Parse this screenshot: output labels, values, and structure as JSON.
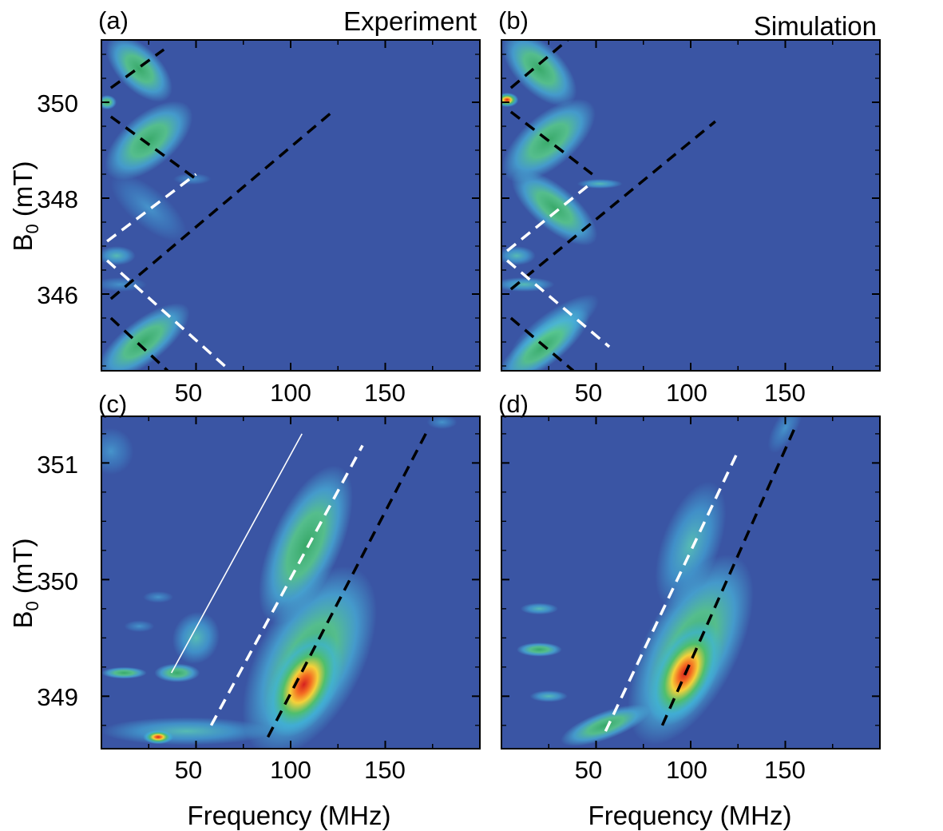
{
  "figure": {
    "xlabel": "Frequency (MHz)",
    "ylabel_main": "B",
    "ylabel_sub": "0",
    "ylabel_unit": " (mT)"
  },
  "chart_data": [
    {
      "type": "heatmap",
      "panel": "(a)",
      "title": "Experiment",
      "xlim": [
        0,
        200
      ],
      "ylim": [
        344.4,
        351.3
      ],
      "x_ticks": [
        50,
        100,
        150
      ],
      "x_tick_labels": [
        "50",
        "100",
        "150"
      ],
      "y_ticks": [
        346,
        348,
        350
      ],
      "y_tick_labels": [
        "346",
        "348",
        "350"
      ],
      "colors": {
        "background": "#3a55a4",
        "black_line": "#000000",
        "white_line": "#ffffff"
      },
      "blobs": [
        {
          "x": 20,
          "y": 350.7,
          "rx": 22,
          "ry": 0.45,
          "angle_deg": -45,
          "peak": 0.5
        },
        {
          "x": 25,
          "y": 349.2,
          "rx": 28,
          "ry": 0.55,
          "angle_deg": 40,
          "peak": 0.55
        },
        {
          "x": 3,
          "y": 350.0,
          "rx": 5,
          "ry": 0.15,
          "angle_deg": 0,
          "peak": 0.6
        },
        {
          "x": 25,
          "y": 347.8,
          "rx": 25,
          "ry": 0.4,
          "angle_deg": -40,
          "peak": 0.3
        },
        {
          "x": 48,
          "y": 348.4,
          "rx": 10,
          "ry": 0.12,
          "angle_deg": 0,
          "peak": 0.3
        },
        {
          "x": 8,
          "y": 346.8,
          "rx": 10,
          "ry": 0.2,
          "angle_deg": 0,
          "peak": 0.35
        },
        {
          "x": 10,
          "y": 346.2,
          "rx": 14,
          "ry": 0.15,
          "angle_deg": 0,
          "peak": 0.3
        },
        {
          "x": 22,
          "y": 345.0,
          "rx": 30,
          "ry": 0.45,
          "angle_deg": 38,
          "peak": 0.55
        }
      ],
      "lines": [
        {
          "color": "black",
          "x": [
            5,
            33
          ],
          "y": [
            350.3,
            351.1
          ]
        },
        {
          "color": "black",
          "x": [
            5,
            50
          ],
          "y": [
            349.7,
            348.4
          ]
        },
        {
          "color": "black",
          "x": [
            5,
            122
          ],
          "y": [
            345.9,
            349.8
          ]
        },
        {
          "color": "black",
          "x": [
            5,
            35
          ],
          "y": [
            345.5,
            344.4
          ]
        },
        {
          "color": "white",
          "x": [
            3,
            50
          ],
          "y": [
            347.1,
            348.5
          ]
        },
        {
          "color": "white",
          "x": [
            3,
            68
          ],
          "y": [
            346.7,
            344.4
          ]
        }
      ]
    },
    {
      "type": "heatmap",
      "panel": "(b)",
      "title": "Simulation",
      "xlim": [
        0,
        200
      ],
      "ylim": [
        344.4,
        351.3
      ],
      "x_ticks": [
        50,
        100,
        150
      ],
      "x_tick_labels": [
        "50",
        "100",
        "150"
      ],
      "y_ticks": [
        346,
        348,
        350
      ],
      "y_tick_labels": [
        "",
        "",
        ""
      ],
      "colors": {
        "background": "#3a55a4",
        "black_line": "#000000",
        "white_line": "#ffffff"
      },
      "blobs": [
        {
          "x": 20,
          "y": 350.7,
          "rx": 25,
          "ry": 0.5,
          "angle_deg": -45,
          "peak": 0.6
        },
        {
          "x": 25,
          "y": 349.2,
          "rx": 30,
          "ry": 0.55,
          "angle_deg": 40,
          "peak": 0.6
        },
        {
          "x": 3,
          "y": 350.05,
          "rx": 6,
          "ry": 0.15,
          "angle_deg": 0,
          "peak": 0.85
        },
        {
          "x": 28,
          "y": 347.8,
          "rx": 28,
          "ry": 0.45,
          "angle_deg": -40,
          "peak": 0.5
        },
        {
          "x": 52,
          "y": 348.3,
          "rx": 12,
          "ry": 0.1,
          "angle_deg": 0,
          "peak": 0.35
        },
        {
          "x": 8,
          "y": 346.8,
          "rx": 10,
          "ry": 0.2,
          "angle_deg": 0,
          "peak": 0.4
        },
        {
          "x": 12,
          "y": 346.2,
          "rx": 16,
          "ry": 0.15,
          "angle_deg": 0,
          "peak": 0.35
        },
        {
          "x": 28,
          "y": 345.3,
          "rx": 28,
          "ry": 0.35,
          "angle_deg": 35,
          "peak": 0.45
        },
        {
          "x": 22,
          "y": 344.9,
          "rx": 30,
          "ry": 0.4,
          "angle_deg": 38,
          "peak": 0.55
        }
      ],
      "lines": [
        {
          "color": "black",
          "x": [
            5,
            35
          ],
          "y": [
            350.3,
            351.3
          ]
        },
        {
          "color": "black",
          "x": [
            5,
            48
          ],
          "y": [
            349.8,
            348.5
          ]
        },
        {
          "color": "black",
          "x": [
            5,
            113
          ],
          "y": [
            346.1,
            349.6
          ]
        },
        {
          "color": "black",
          "x": [
            5,
            38
          ],
          "y": [
            345.5,
            344.4
          ]
        },
        {
          "color": "white",
          "x": [
            3,
            47
          ],
          "y": [
            346.9,
            348.3
          ]
        },
        {
          "color": "white",
          "x": [
            3,
            57
          ],
          "y": [
            346.7,
            344.9
          ]
        }
      ]
    },
    {
      "type": "heatmap",
      "panel": "(c)",
      "title": "",
      "xlim": [
        0,
        200
      ],
      "ylim": [
        348.55,
        351.4
      ],
      "x_ticks": [
        50,
        100,
        150
      ],
      "x_tick_labels": [
        "50",
        "100",
        "150"
      ],
      "y_ticks": [
        349,
        350,
        351
      ],
      "y_tick_labels": [
        "349",
        "350",
        "351"
      ],
      "colors": {
        "background": "#3a55a4",
        "black_line": "#000000",
        "white_line": "#ffffff"
      },
      "blobs": [
        {
          "x": 107,
          "y": 349.1,
          "rx": 30,
          "ry": 0.28,
          "angle_deg": 62,
          "peak": 1.0
        },
        {
          "x": 110,
          "y": 349.3,
          "rx": 55,
          "ry": 0.45,
          "angle_deg": 62,
          "peak": 0.55
        },
        {
          "x": 108,
          "y": 350.3,
          "rx": 45,
          "ry": 0.3,
          "angle_deg": 66,
          "peak": 0.5
        },
        {
          "x": 30,
          "y": 348.65,
          "rx": 8,
          "ry": 0.06,
          "angle_deg": 0,
          "peak": 0.85
        },
        {
          "x": 45,
          "y": 348.7,
          "rx": 45,
          "ry": 0.12,
          "angle_deg": 0,
          "peak": 0.45
        },
        {
          "x": 12,
          "y": 349.2,
          "rx": 12,
          "ry": 0.05,
          "angle_deg": 0,
          "peak": 0.55
        },
        {
          "x": 40,
          "y": 349.2,
          "rx": 12,
          "ry": 0.08,
          "angle_deg": 0,
          "peak": 0.5
        },
        {
          "x": 50,
          "y": 349.5,
          "rx": 14,
          "ry": 0.2,
          "angle_deg": 70,
          "peak": 0.35
        },
        {
          "x": 5,
          "y": 351.1,
          "rx": 12,
          "ry": 0.2,
          "angle_deg": 0,
          "peak": 0.3
        },
        {
          "x": 20,
          "y": 349.6,
          "rx": 8,
          "ry": 0.05,
          "angle_deg": 0,
          "peak": 0.25
        },
        {
          "x": 30,
          "y": 349.85,
          "rx": 8,
          "ry": 0.05,
          "angle_deg": 0,
          "peak": 0.25
        },
        {
          "x": 180,
          "y": 351.35,
          "rx": 8,
          "ry": 0.06,
          "angle_deg": 0,
          "peak": 0.25
        }
      ],
      "lines": [
        {
          "color": "black",
          "x": [
            88,
            173
          ],
          "y": [
            348.65,
            351.3
          ]
        },
        {
          "color": "white",
          "x": [
            58,
            138
          ],
          "y": [
            348.75,
            351.15
          ]
        },
        {
          "color": "white_solid",
          "x": [
            37,
            106
          ],
          "y": [
            349.2,
            351.25
          ]
        }
      ]
    },
    {
      "type": "heatmap",
      "panel": "(d)",
      "title": "",
      "xlim": [
        0,
        200
      ],
      "ylim": [
        348.55,
        351.4
      ],
      "x_ticks": [
        50,
        100,
        150
      ],
      "x_tick_labels": [
        "50",
        "100",
        "150"
      ],
      "y_ticks": [
        349,
        350,
        351
      ],
      "y_tick_labels": [
        "",
        "",
        ""
      ],
      "colors": {
        "background": "#3a55a4",
        "black_line": "#000000",
        "white_line": "#ffffff"
      },
      "blobs": [
        {
          "x": 97,
          "y": 349.2,
          "rx": 30,
          "ry": 0.26,
          "angle_deg": 63,
          "peak": 1.0
        },
        {
          "x": 100,
          "y": 349.4,
          "rx": 55,
          "ry": 0.4,
          "angle_deg": 63,
          "peak": 0.55
        },
        {
          "x": 100,
          "y": 350.3,
          "rx": 35,
          "ry": 0.25,
          "angle_deg": 70,
          "peak": 0.45
        },
        {
          "x": 150,
          "y": 351.3,
          "rx": 15,
          "ry": 0.1,
          "angle_deg": 60,
          "peak": 0.3
        },
        {
          "x": 55,
          "y": 348.75,
          "rx": 25,
          "ry": 0.12,
          "angle_deg": 20,
          "peak": 0.55
        },
        {
          "x": 20,
          "y": 349.4,
          "rx": 12,
          "ry": 0.06,
          "angle_deg": 0,
          "peak": 0.55
        },
        {
          "x": 20,
          "y": 349.75,
          "rx": 10,
          "ry": 0.05,
          "angle_deg": 0,
          "peak": 0.4
        },
        {
          "x": 25,
          "y": 349.0,
          "rx": 10,
          "ry": 0.05,
          "angle_deg": 0,
          "peak": 0.35
        }
      ],
      "lines": [
        {
          "color": "black",
          "x": [
            85,
            155
          ],
          "y": [
            348.75,
            351.3
          ]
        },
        {
          "color": "white",
          "x": [
            55,
            125
          ],
          "y": [
            348.7,
            351.1
          ]
        }
      ]
    }
  ]
}
